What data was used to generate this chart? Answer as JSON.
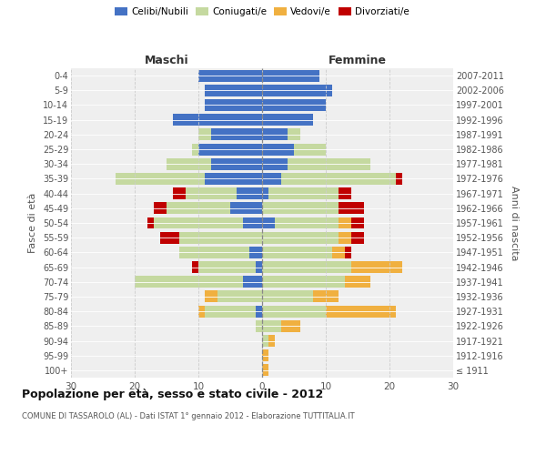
{
  "age_groups": [
    "100+",
    "95-99",
    "90-94",
    "85-89",
    "80-84",
    "75-79",
    "70-74",
    "65-69",
    "60-64",
    "55-59",
    "50-54",
    "45-49",
    "40-44",
    "35-39",
    "30-34",
    "25-29",
    "20-24",
    "15-19",
    "10-14",
    "5-9",
    "0-4"
  ],
  "birth_years": [
    "≤ 1911",
    "1912-1916",
    "1917-1921",
    "1922-1926",
    "1927-1931",
    "1932-1936",
    "1937-1941",
    "1942-1946",
    "1947-1951",
    "1952-1956",
    "1957-1961",
    "1962-1966",
    "1967-1971",
    "1972-1976",
    "1977-1981",
    "1982-1986",
    "1987-1991",
    "1992-1996",
    "1997-2001",
    "2002-2006",
    "2007-2011"
  ],
  "maschi": {
    "celibi": [
      0,
      0,
      0,
      0,
      1,
      0,
      3,
      1,
      2,
      0,
      3,
      5,
      4,
      9,
      8,
      10,
      8,
      14,
      9,
      9,
      10
    ],
    "coniugati": [
      0,
      0,
      0,
      1,
      8,
      7,
      17,
      9,
      11,
      13,
      14,
      10,
      8,
      14,
      7,
      1,
      2,
      0,
      0,
      0,
      0
    ],
    "vedovi": [
      0,
      0,
      0,
      0,
      1,
      2,
      0,
      0,
      0,
      0,
      0,
      0,
      0,
      0,
      0,
      0,
      0,
      0,
      0,
      0,
      0
    ],
    "divorziati": [
      0,
      0,
      0,
      0,
      0,
      0,
      0,
      1,
      0,
      3,
      1,
      2,
      2,
      0,
      0,
      0,
      0,
      0,
      0,
      0,
      0
    ]
  },
  "femmine": {
    "nubili": [
      0,
      0,
      0,
      0,
      0,
      0,
      0,
      0,
      0,
      0,
      2,
      0,
      1,
      3,
      4,
      5,
      4,
      8,
      10,
      11,
      9
    ],
    "coniugate": [
      0,
      0,
      1,
      3,
      10,
      8,
      13,
      14,
      11,
      12,
      10,
      12,
      11,
      18,
      13,
      5,
      2,
      0,
      0,
      0,
      0
    ],
    "vedove": [
      1,
      1,
      1,
      3,
      11,
      4,
      4,
      8,
      2,
      2,
      2,
      0,
      0,
      0,
      0,
      0,
      0,
      0,
      0,
      0,
      0
    ],
    "divorziate": [
      0,
      0,
      0,
      0,
      0,
      0,
      0,
      0,
      1,
      2,
      2,
      4,
      2,
      1,
      0,
      0,
      0,
      0,
      0,
      0,
      0
    ]
  },
  "colors": {
    "celibi_nubili": "#4472c4",
    "coniugati_e": "#c5d9a0",
    "vedovi_e": "#f0b040",
    "divorziati_e": "#c00000"
  },
  "xlim": 30,
  "title": "Popolazione per età, sesso e stato civile - 2012",
  "subtitle": "COMUNE DI TASSAROLO (AL) - Dati ISTAT 1° gennaio 2012 - Elaborazione TUTTITALIA.IT",
  "ylabel_left": "Fasce di età",
  "ylabel_right": "Anni di nascita",
  "xlabel_maschi": "Maschi",
  "xlabel_femmine": "Femmine",
  "legend_labels": [
    "Celibi/Nubili",
    "Coniugati/e",
    "Vedovi/e",
    "Divorziati/e"
  ],
  "background_color": "#ffffff",
  "plot_bg_color": "#efefef"
}
